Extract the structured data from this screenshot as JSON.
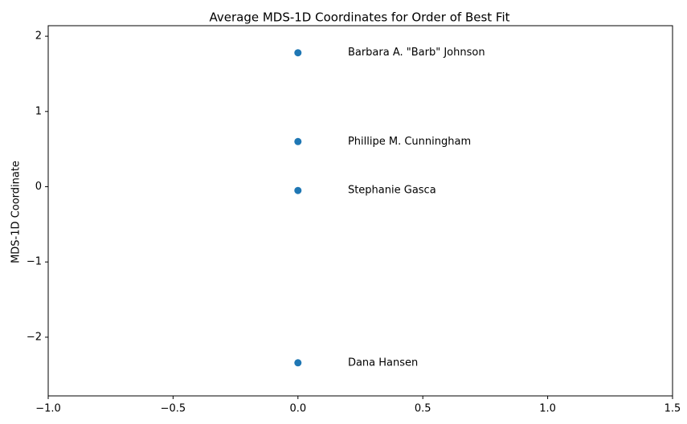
{
  "chart_data": {
    "type": "scatter",
    "title": "Average MDS-1D Coordinates for Order of Best Fit",
    "xlabel": "",
    "ylabel": "MDS-1D Coordinate",
    "xlim": [
      -1.0,
      1.5
    ],
    "ylim": [
      -2.78,
      2.14
    ],
    "xticks": [
      -1.0,
      -0.5,
      0.0,
      0.5,
      1.0,
      1.5
    ],
    "xtick_labels": [
      "−1.0",
      "−0.5",
      "0.0",
      "0.5",
      "1.0",
      "1.5"
    ],
    "yticks": [
      -2,
      -1,
      0,
      1,
      2
    ],
    "ytick_labels": [
      "−2",
      "−1",
      "0",
      "1",
      "2"
    ],
    "grid": false,
    "marker_color": "#1f77b4",
    "points": [
      {
        "x": 0.0,
        "y": 1.78,
        "label": "Barbara A. \"Barb\" Johnson",
        "label_x": 0.2,
        "label_y": 1.78
      },
      {
        "x": 0.0,
        "y": 0.6,
        "label": "Phillipe M. Cunningham",
        "label_x": 0.2,
        "label_y": 0.6
      },
      {
        "x": 0.0,
        "y": -0.05,
        "label": "Stephanie Gasca",
        "label_x": 0.2,
        "label_y": -0.05
      },
      {
        "x": 0.0,
        "y": -2.34,
        "label": "Dana Hansen",
        "label_x": 0.2,
        "label_y": -2.34
      }
    ]
  }
}
